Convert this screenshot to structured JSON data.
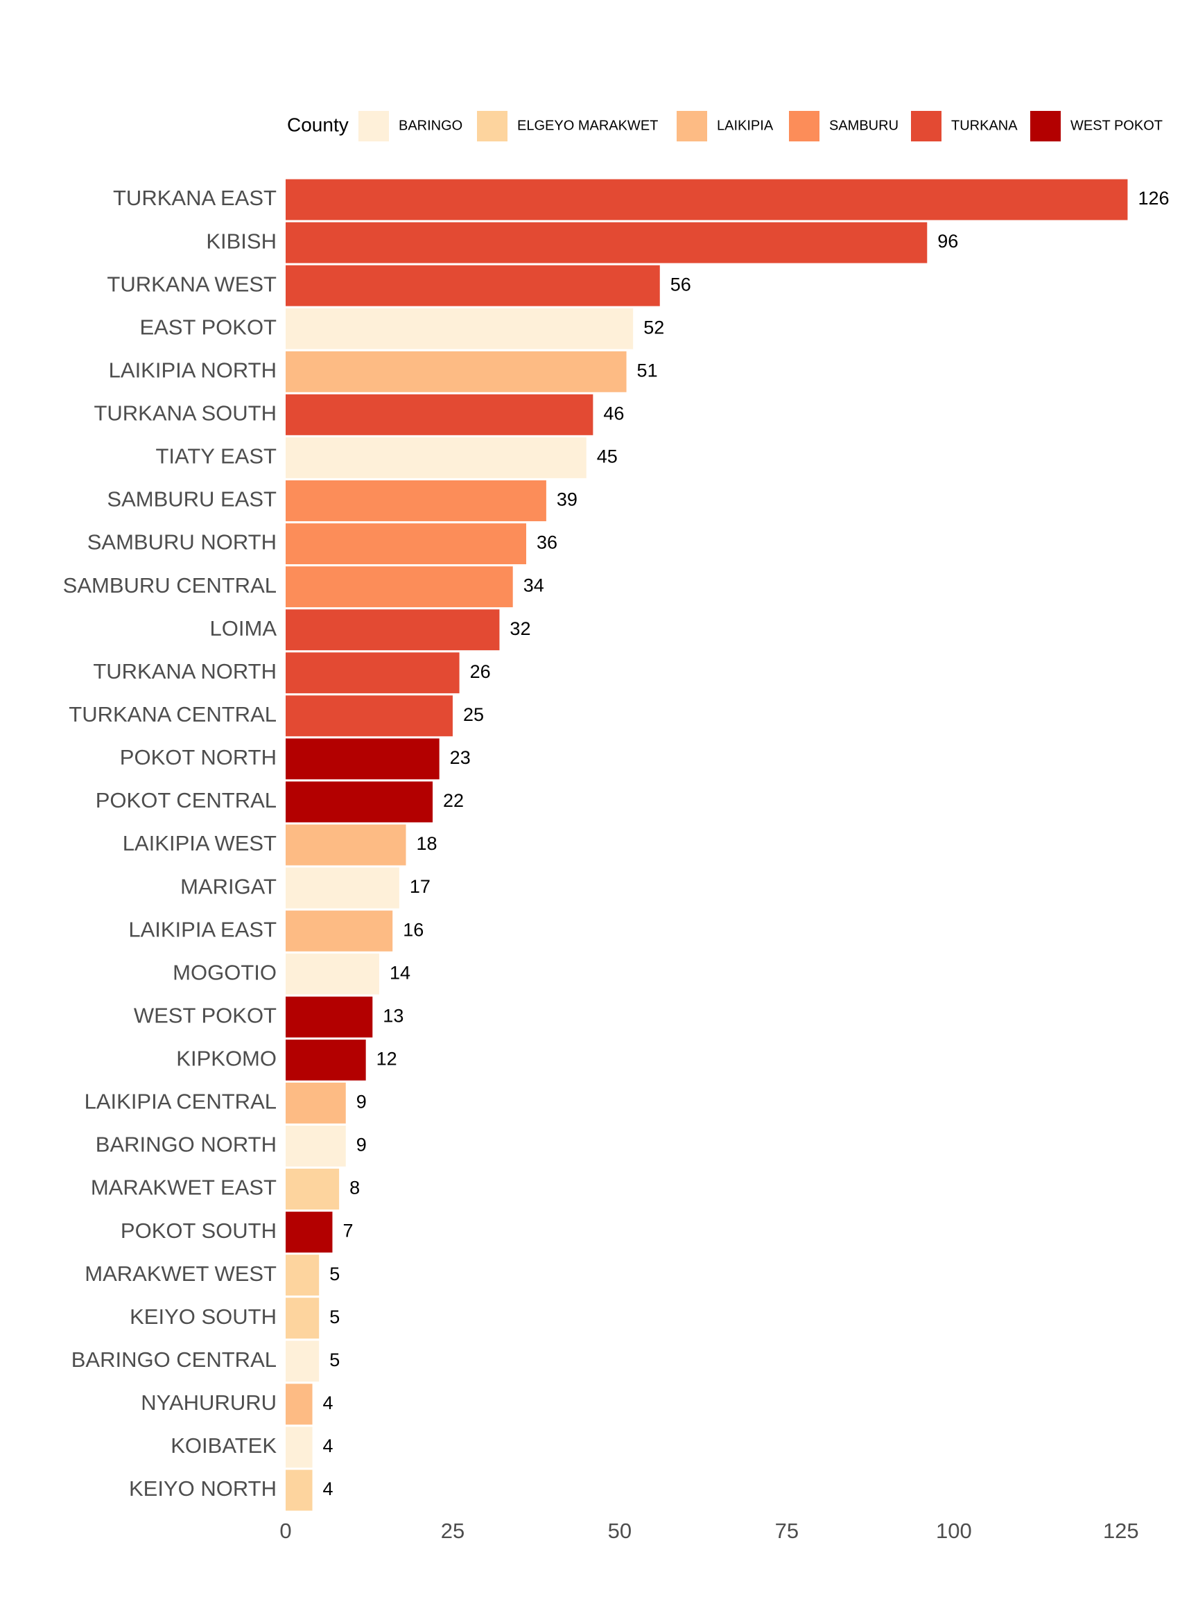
{
  "chart_data": {
    "type": "bar",
    "orientation": "horizontal",
    "legend_title": "County",
    "categories": [
      "TURKANA EAST",
      "KIBISH",
      "TURKANA WEST",
      "EAST POKOT",
      "LAIKIPIA NORTH",
      "TURKANA SOUTH",
      "TIATY EAST",
      "SAMBURU EAST",
      "SAMBURU NORTH",
      "SAMBURU CENTRAL",
      "LOIMA",
      "TURKANA NORTH",
      "TURKANA CENTRAL",
      "POKOT NORTH",
      "POKOT CENTRAL",
      "LAIKIPIA WEST",
      "MARIGAT",
      "LAIKIPIA EAST",
      "MOGOTIO",
      "WEST POKOT",
      "KIPKOMO",
      "LAIKIPIA CENTRAL",
      "BARINGO NORTH",
      "MARAKWET EAST",
      "POKOT SOUTH",
      "MARAKWET WEST",
      "KEIYO SOUTH",
      "BARINGO CENTRAL",
      "NYAHURURU",
      "KOIBATEK",
      "KEIYO NORTH"
    ],
    "series": [
      {
        "name": "BARINGO",
        "color": "#fef0d9",
        "values": [
          null,
          null,
          null,
          52,
          null,
          null,
          45,
          null,
          null,
          null,
          null,
          null,
          null,
          null,
          null,
          null,
          17,
          null,
          14,
          null,
          null,
          null,
          9,
          null,
          null,
          null,
          null,
          5,
          null,
          4,
          null
        ]
      },
      {
        "name": "ELGEYO MARAKWET",
        "color": "#fdd49e",
        "values": [
          null,
          null,
          null,
          null,
          null,
          null,
          null,
          null,
          null,
          null,
          null,
          null,
          null,
          null,
          null,
          null,
          null,
          null,
          null,
          null,
          null,
          null,
          null,
          8,
          null,
          5,
          5,
          null,
          null,
          null,
          4
        ]
      },
      {
        "name": "LAIKIPIA",
        "color": "#fdbb84",
        "values": [
          null,
          null,
          null,
          null,
          51,
          null,
          null,
          null,
          null,
          null,
          null,
          null,
          null,
          null,
          null,
          18,
          null,
          16,
          null,
          null,
          null,
          9,
          null,
          null,
          null,
          null,
          null,
          null,
          4,
          null,
          null
        ]
      },
      {
        "name": "SAMBURU",
        "color": "#fc8d59",
        "values": [
          null,
          null,
          null,
          null,
          null,
          null,
          null,
          39,
          36,
          34,
          null,
          null,
          null,
          null,
          null,
          null,
          null,
          null,
          null,
          null,
          null,
          null,
          null,
          null,
          null,
          null,
          null,
          null,
          null,
          null,
          null
        ]
      },
      {
        "name": "TURKANA",
        "color": "#e34a33",
        "values": [
          126,
          96,
          56,
          null,
          null,
          46,
          null,
          null,
          null,
          null,
          32,
          26,
          25,
          null,
          null,
          null,
          null,
          null,
          null,
          null,
          null,
          null,
          null,
          null,
          null,
          null,
          null,
          null,
          null,
          null,
          null
        ]
      },
      {
        "name": "WEST POKOT",
        "color": "#b30000",
        "values": [
          null,
          null,
          null,
          null,
          null,
          null,
          null,
          null,
          null,
          null,
          null,
          null,
          null,
          23,
          22,
          null,
          null,
          null,
          null,
          13,
          12,
          null,
          null,
          null,
          7,
          null,
          null,
          null,
          null,
          null,
          null
        ]
      }
    ],
    "xlim": [
      0,
      130
    ],
    "xticks": [
      0,
      25,
      50,
      75,
      100,
      125
    ],
    "grid": false
  }
}
